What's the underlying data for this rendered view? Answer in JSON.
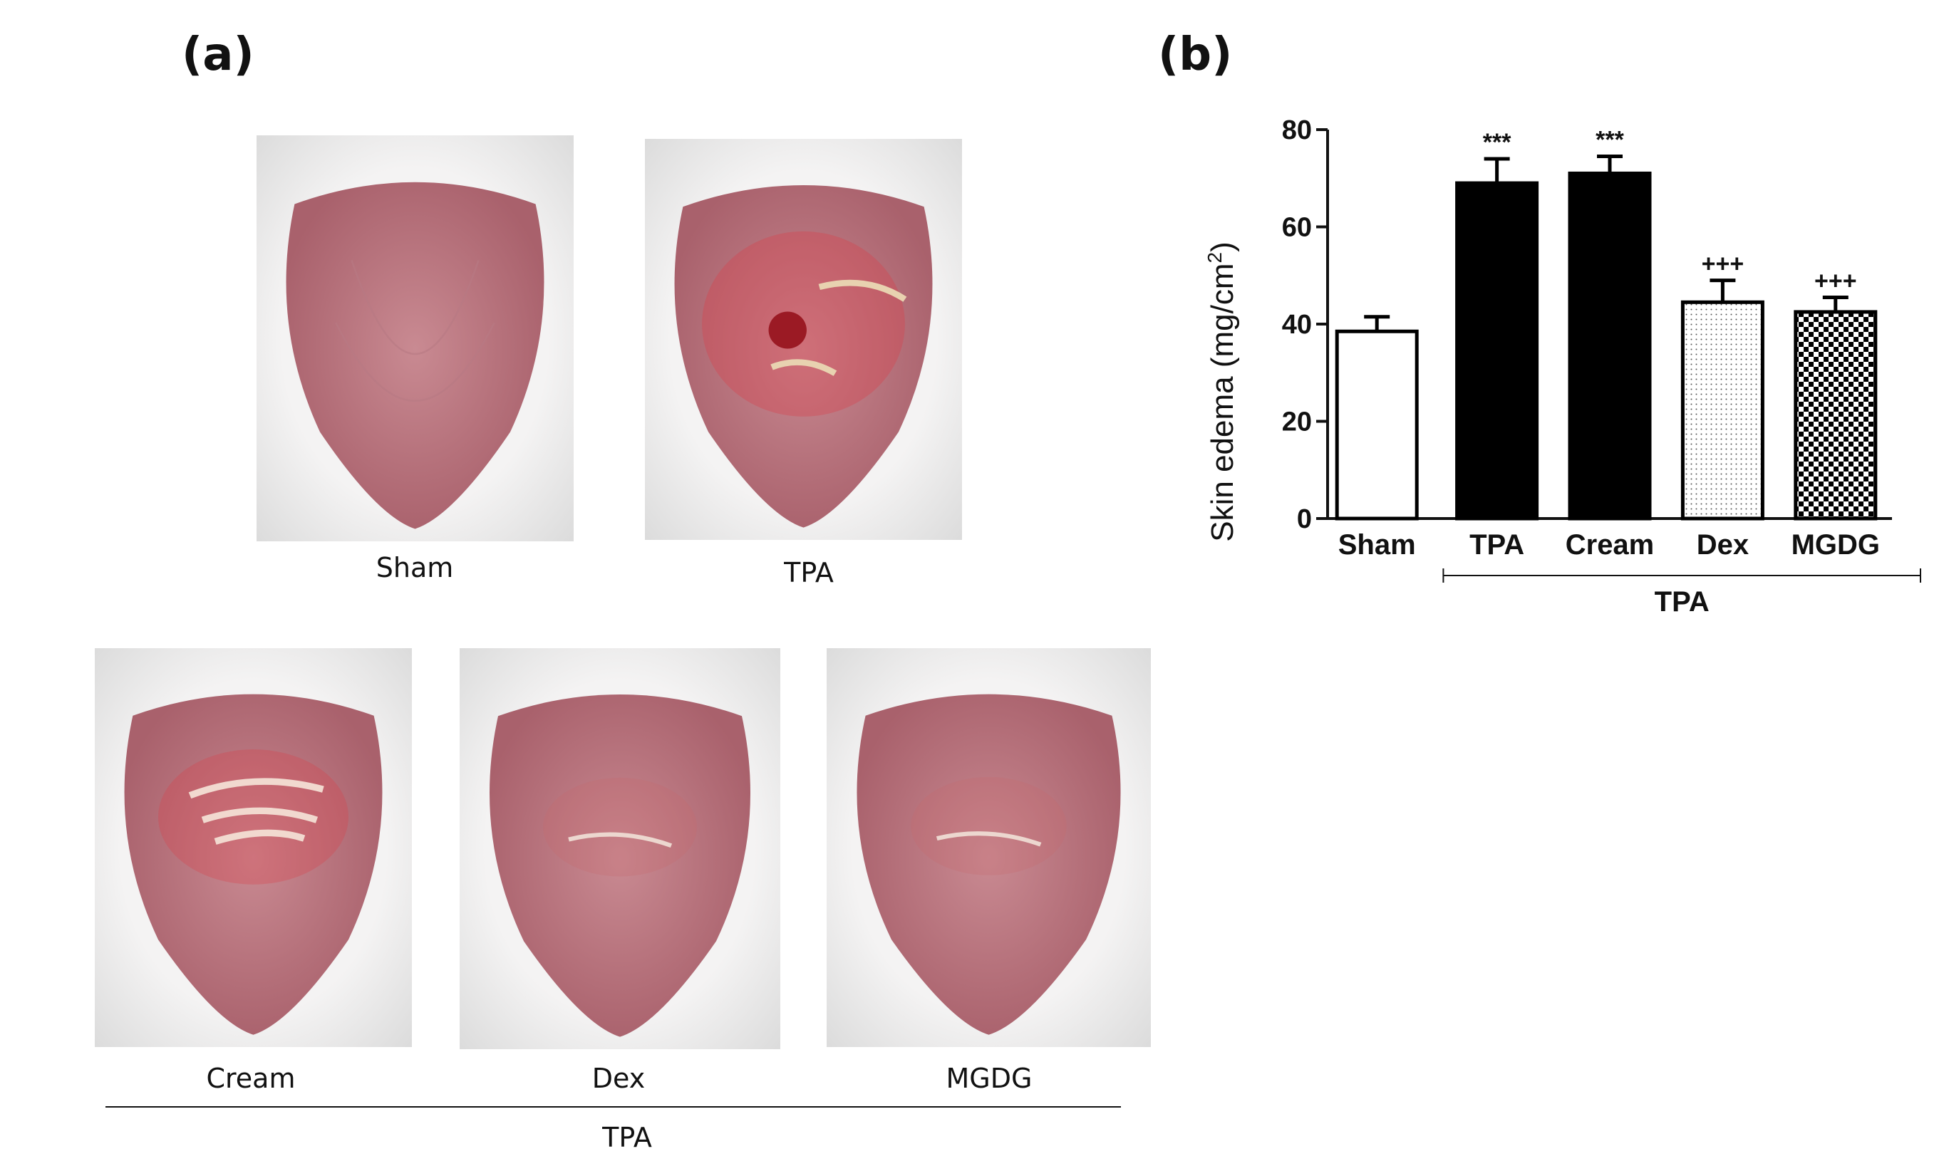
{
  "panels": {
    "a_label": "(a)",
    "b_label": "(b)"
  },
  "photos": [
    {
      "name": "Sham",
      "caption": "Sham",
      "condition": "healthy"
    },
    {
      "name": "TPA",
      "caption": "TPA",
      "condition": "inflamed-lesion"
    },
    {
      "name": "Cream",
      "caption": "Cream",
      "condition": "inflamed-scaling"
    },
    {
      "name": "Dex",
      "caption": "Dex",
      "condition": "mild"
    },
    {
      "name": "MGDG",
      "caption": "MGDG",
      "condition": "mild"
    }
  ],
  "photo_group_label": "TPA",
  "colors": {
    "skin_light": "#c98a92",
    "skin_dark": "#a9616c",
    "fur": "#f4f3f3",
    "lesion": "#d9404a",
    "bar_black": "#000000",
    "axis": "#111111"
  },
  "chart_data": {
    "type": "bar",
    "categories": [
      "Sham",
      "TPA",
      "Cream",
      "Dex",
      "MGDG"
    ],
    "values": [
      38.5,
      69,
      71,
      44.5,
      42.5
    ],
    "errors": [
      3,
      5,
      3.5,
      4.5,
      3
    ],
    "fills": [
      "white",
      "black",
      "black",
      "dotted",
      "checkered"
    ],
    "annotations": [
      "",
      "***",
      "***",
      "+++",
      "+++"
    ],
    "ylabel": "Skin edema (mg/cm²)",
    "ylabel_main": "Skin edema (mg/cm",
    "ylabel_sup": "2",
    "ylabel_end": ")",
    "ylim": [
      0,
      80
    ],
    "yticks": [
      "0",
      "20",
      "40",
      "60",
      "80"
    ],
    "group_label": "TPA",
    "group_categories": [
      "TPA",
      "Cream",
      "Dex",
      "MGDG"
    ]
  }
}
